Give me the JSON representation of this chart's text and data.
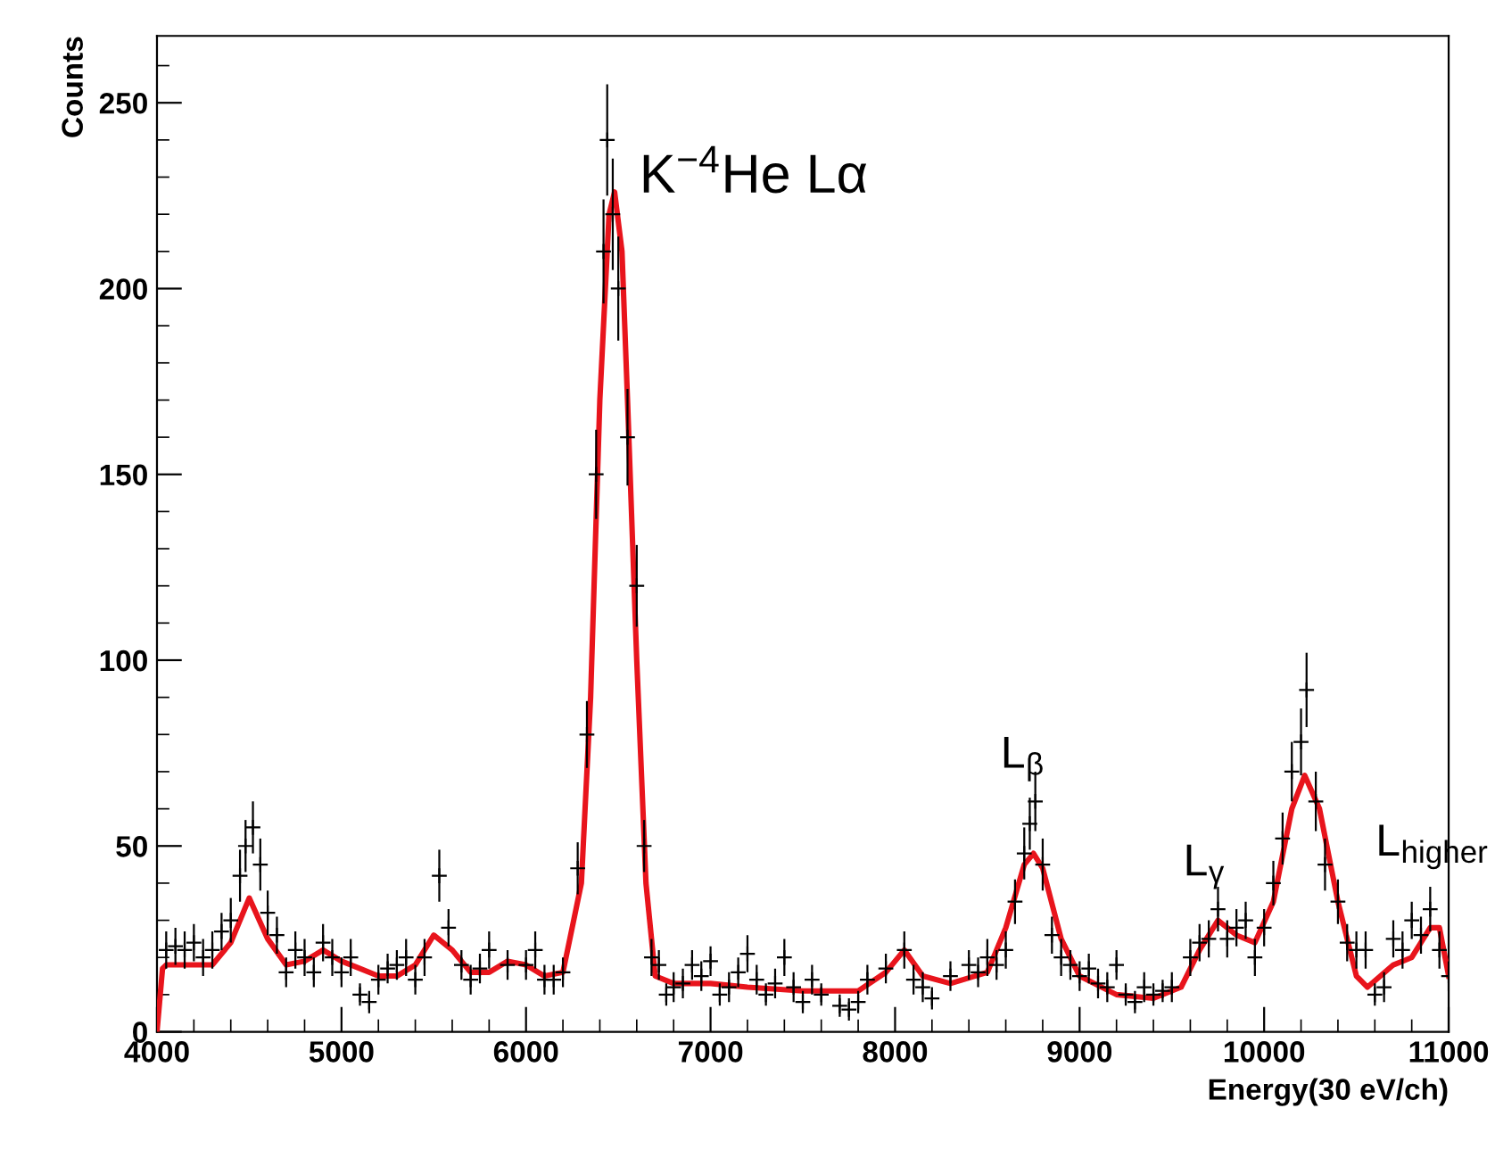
{
  "chart_data": {
    "type": "scatter",
    "xlabel": "Energy(30 eV/ch)",
    "ylabel": "Counts",
    "xlim": [
      4000,
      11000
    ],
    "ylim": [
      0,
      268
    ],
    "xticks": [
      4000,
      5000,
      6000,
      7000,
      8000,
      9000,
      10000,
      11000
    ],
    "yticks": [
      0,
      50,
      100,
      150,
      200,
      250
    ],
    "grid": false,
    "legend": false,
    "annotations": [
      {
        "text": "K$^{−4}$He Lα",
        "x": 6480,
        "y": 226
      },
      {
        "text": "L$_{β}$",
        "x": 8760,
        "y": 62
      },
      {
        "text": "L$_{γ}$",
        "x": 9750,
        "y": 33
      },
      {
        "text": "L$_{higher}$",
        "x": 10900,
        "y": 33
      }
    ],
    "series": [
      {
        "color": "#000000",
        "marker": "cross",
        "x": [
          4050,
          4100,
          4150,
          4200,
          4250,
          4300,
          4350,
          4400,
          4450,
          4480,
          4520,
          4560,
          4600,
          4650,
          4700,
          4750,
          4800,
          4850,
          4900,
          4950,
          5000,
          5050,
          5100,
          5150,
          5200,
          5250,
          5300,
          5350,
          5400,
          5450,
          5530,
          5580,
          5650,
          5700,
          5750,
          5800,
          5900,
          6000,
          6050,
          6100,
          6150,
          6200,
          6280,
          6330,
          6380,
          6420,
          6440,
          6470,
          6500,
          6550,
          6600,
          6640,
          6680,
          6720,
          6760,
          6800,
          6850,
          6900,
          6950,
          7000,
          7050,
          7100,
          7150,
          7200,
          7250,
          7300,
          7350,
          7400,
          7450,
          7500,
          7550,
          7600,
          7700,
          7750,
          7800,
          7850,
          7950,
          8050,
          8100,
          8150,
          8200,
          8300,
          8400,
          8450,
          8500,
          8550,
          8600,
          8650,
          8700,
          8730,
          8760,
          8800,
          8850,
          8900,
          8950,
          9000,
          9050,
          9100,
          9150,
          9200,
          9250,
          9300,
          9350,
          9400,
          9450,
          9500,
          9600,
          9650,
          9700,
          9750,
          9800,
          9850,
          9900,
          9950,
          10000,
          10050,
          10100,
          10150,
          10200,
          10230,
          10280,
          10330,
          10400,
          10450,
          10500,
          10550,
          10600,
          10650,
          10700,
          10750,
          10800,
          10850,
          10900,
          10950,
          11000
        ],
        "values": [
          22,
          23,
          22,
          24,
          20,
          22,
          27,
          30,
          42,
          50,
          55,
          45,
          32,
          26,
          16,
          22,
          20,
          16,
          24,
          20,
          16,
          20,
          10,
          8,
          14,
          17,
          18,
          20,
          14,
          20,
          42,
          28,
          18,
          14,
          17,
          22,
          18,
          18,
          22,
          14,
          14,
          16,
          44,
          80,
          150,
          210,
          240,
          220,
          200,
          160,
          120,
          50,
          20,
          18,
          10,
          12,
          13,
          18,
          15,
          19,
          10,
          12,
          16,
          21,
          14,
          10,
          13,
          20,
          12,
          8,
          14,
          10,
          7,
          6,
          8,
          14,
          17,
          22,
          14,
          12,
          9,
          15,
          18,
          16,
          20,
          18,
          22,
          35,
          48,
          56,
          62,
          45,
          26,
          20,
          18,
          15,
          17,
          13,
          12,
          18,
          10,
          8,
          12,
          10,
          11,
          12,
          20,
          24,
          25,
          33,
          25,
          28,
          30,
          20,
          28,
          40,
          52,
          70,
          78,
          92,
          62,
          45,
          35,
          24,
          22,
          22,
          10,
          12,
          25,
          22,
          30,
          26,
          33,
          22,
          15
        ],
        "errors": [
          5,
          5,
          5,
          5,
          5,
          5,
          5,
          6,
          7,
          7,
          7,
          7,
          6,
          5,
          4,
          5,
          5,
          4,
          5,
          5,
          4,
          5,
          3,
          3,
          4,
          4,
          4,
          5,
          4,
          5,
          7,
          5,
          4,
          4,
          4,
          5,
          4,
          4,
          5,
          4,
          4,
          4,
          7,
          9,
          12,
          14,
          15,
          15,
          14,
          13,
          11,
          7,
          5,
          4,
          3,
          4,
          4,
          4,
          4,
          4,
          3,
          4,
          4,
          5,
          4,
          3,
          4,
          5,
          4,
          3,
          4,
          3,
          3,
          3,
          3,
          4,
          4,
          5,
          4,
          4,
          3,
          4,
          4,
          4,
          5,
          4,
          5,
          6,
          7,
          7,
          8,
          7,
          5,
          5,
          4,
          4,
          4,
          4,
          4,
          4,
          3,
          3,
          4,
          3,
          3,
          4,
          5,
          5,
          5,
          6,
          5,
          5,
          5,
          5,
          5,
          6,
          7,
          8,
          9,
          10,
          8,
          7,
          6,
          5,
          5,
          5,
          3,
          4,
          5,
          5,
          5,
          5,
          6,
          5,
          4
        ]
      },
      {
        "type": "line",
        "color": "#e8141c",
        "x": [
          4000,
          4030,
          4050,
          4300,
          4400,
          4500,
          4600,
          4700,
          4800,
          4900,
          5000,
          5100,
          5200,
          5300,
          5400,
          5500,
          5600,
          5700,
          5800,
          5900,
          6000,
          6100,
          6200,
          6300,
          6350,
          6400,
          6450,
          6480,
          6520,
          6550,
          6600,
          6650,
          6700,
          6800,
          7000,
          7200,
          7500,
          7800,
          7950,
          8050,
          8150,
          8300,
          8500,
          8600,
          8700,
          8750,
          8800,
          8900,
          9000,
          9200,
          9400,
          9550,
          9650,
          9750,
          9850,
          9950,
          10050,
          10150,
          10220,
          10300,
          10400,
          10500,
          10560,
          10700,
          10800,
          10900,
          10950,
          11000
        ],
        "values": [
          0,
          17,
          18,
          18,
          24,
          36,
          25,
          18,
          19,
          22,
          19,
          17,
          15,
          15,
          18,
          26,
          22,
          16,
          16,
          19,
          18,
          15,
          16,
          40,
          90,
          170,
          220,
          226,
          210,
          170,
          100,
          40,
          15,
          13,
          13,
          12,
          11,
          11,
          16,
          22,
          15,
          13,
          16,
          28,
          45,
          48,
          44,
          25,
          15,
          10,
          9,
          12,
          22,
          30,
          26,
          24,
          35,
          60,
          69,
          60,
          35,
          15,
          12,
          18,
          20,
          28,
          28,
          15
        ]
      }
    ]
  }
}
